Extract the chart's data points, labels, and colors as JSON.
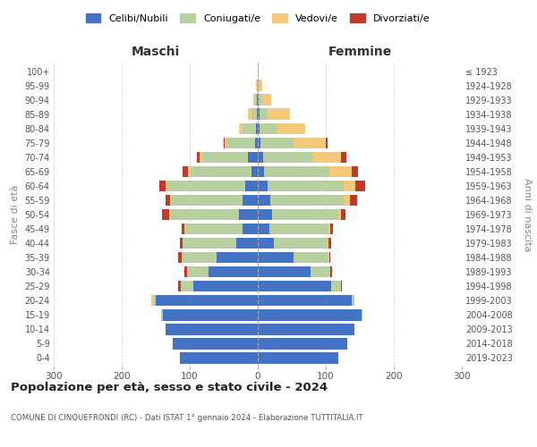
{
  "age_groups": [
    "0-4",
    "5-9",
    "10-14",
    "15-19",
    "20-24",
    "25-29",
    "30-34",
    "35-39",
    "40-44",
    "45-49",
    "50-54",
    "55-59",
    "60-64",
    "65-69",
    "70-74",
    "75-79",
    "80-84",
    "85-89",
    "90-94",
    "95-99",
    "100+"
  ],
  "birth_years": [
    "2019-2023",
    "2014-2018",
    "2009-2013",
    "2004-2008",
    "1999-2003",
    "1994-1998",
    "1989-1993",
    "1984-1988",
    "1979-1983",
    "1974-1978",
    "1969-1973",
    "1964-1968",
    "1959-1963",
    "1954-1958",
    "1949-1953",
    "1944-1948",
    "1939-1943",
    "1934-1938",
    "1929-1933",
    "1924-1928",
    "≤ 1923"
  ],
  "maschi": {
    "celibi": [
      115,
      125,
      135,
      140,
      150,
      95,
      72,
      60,
      32,
      22,
      28,
      22,
      18,
      9,
      14,
      4,
      3,
      1,
      1,
      0,
      0
    ],
    "coniugati": [
      0,
      0,
      0,
      2,
      4,
      18,
      32,
      52,
      78,
      85,
      100,
      105,
      115,
      90,
      68,
      42,
      20,
      8,
      3,
      1,
      0
    ],
    "vedovi": [
      0,
      0,
      0,
      0,
      2,
      0,
      0,
      0,
      0,
      1,
      2,
      2,
      3,
      4,
      3,
      3,
      5,
      5,
      3,
      1,
      0
    ],
    "divorziati": [
      0,
      0,
      0,
      0,
      0,
      4,
      4,
      5,
      4,
      4,
      11,
      7,
      9,
      7,
      5,
      1,
      0,
      0,
      0,
      0,
      0
    ]
  },
  "femmine": {
    "nubili": [
      118,
      132,
      142,
      152,
      138,
      108,
      78,
      52,
      24,
      17,
      21,
      19,
      14,
      9,
      8,
      4,
      3,
      2,
      1,
      0,
      0
    ],
    "coniugate": [
      0,
      0,
      0,
      2,
      4,
      14,
      28,
      52,
      78,
      87,
      97,
      107,
      112,
      96,
      72,
      48,
      24,
      12,
      5,
      2,
      0
    ],
    "vedove": [
      0,
      0,
      0,
      0,
      0,
      0,
      0,
      1,
      2,
      2,
      4,
      9,
      18,
      33,
      43,
      48,
      43,
      33,
      14,
      5,
      1
    ],
    "divorziate": [
      0,
      0,
      0,
      0,
      0,
      2,
      3,
      2,
      4,
      4,
      7,
      11,
      14,
      9,
      7,
      3,
      0,
      0,
      0,
      0,
      0
    ]
  },
  "colors": {
    "celibi_nubili": "#4472c4",
    "coniugati": "#b8cfa0",
    "vedovi": "#f5c97a",
    "divorziati": "#c0392b"
  },
  "title": "Popolazione per età, sesso e stato civile - 2024",
  "subtitle": "COMUNE DI CINQUEFRONDI (RC) - Dati ISTAT 1° gennaio 2024 - Elaborazione TUTTITALIA.IT",
  "xlabel_left": "Maschi",
  "xlabel_right": "Femmine",
  "ylabel_left": "Fasce di età",
  "ylabel_right": "Anni di nascita",
  "xlim": 300,
  "legend_labels": [
    "Celibi/Nubili",
    "Coniugati/e",
    "Vedovi/e",
    "Divorziati/e"
  ],
  "bg_color": "#ffffff",
  "grid_color": "#cccccc"
}
